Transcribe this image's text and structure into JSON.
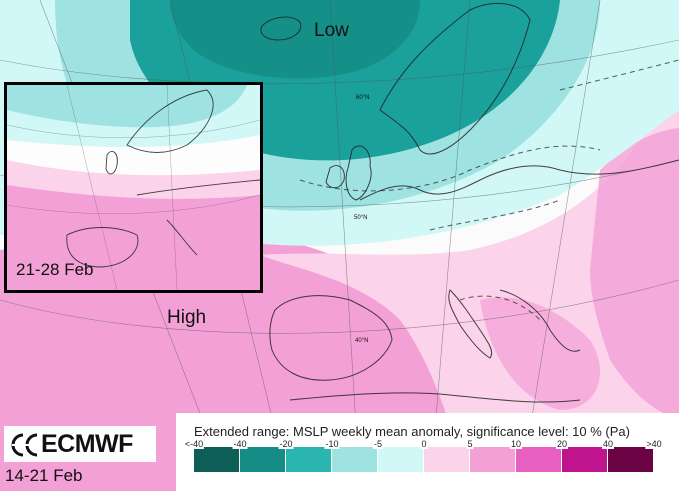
{
  "labels": {
    "low": "Low",
    "high": "High"
  },
  "inset": {
    "period": "21-28 Feb"
  },
  "main_period": "14-21 Feb",
  "latitude_labels": [
    "60°N",
    "50°N",
    "40°N"
  ],
  "logo": {
    "text": "ECMWF",
    "icon": "ecmwf-logo-icon"
  },
  "legend": {
    "title": "Extended range: MSLP weekly mean anomaly, significance level: 10 % (Pa)",
    "ticks": [
      "<-40",
      "-40",
      "-20",
      "-10",
      "-5",
      "0",
      "5",
      "10",
      "20",
      "40",
      ">40"
    ],
    "colors": [
      "#0e5e58",
      "#158c86",
      "#2bb5b0",
      "#9fe2e2",
      "#d2f7f7",
      "#fbd3ea",
      "#f3a0d6",
      "#e75fc0",
      "#c0148e",
      "#6b0345"
    ]
  },
  "colors": {
    "strong_negative": "#1aa19b",
    "moderate_negative": "#9fe2e2",
    "weak_negative": "#d2f7f7",
    "neutral": "#fbfbfb",
    "weak_positive": "#fbd3ea",
    "moderate_positive": "#f3a0d6"
  }
}
